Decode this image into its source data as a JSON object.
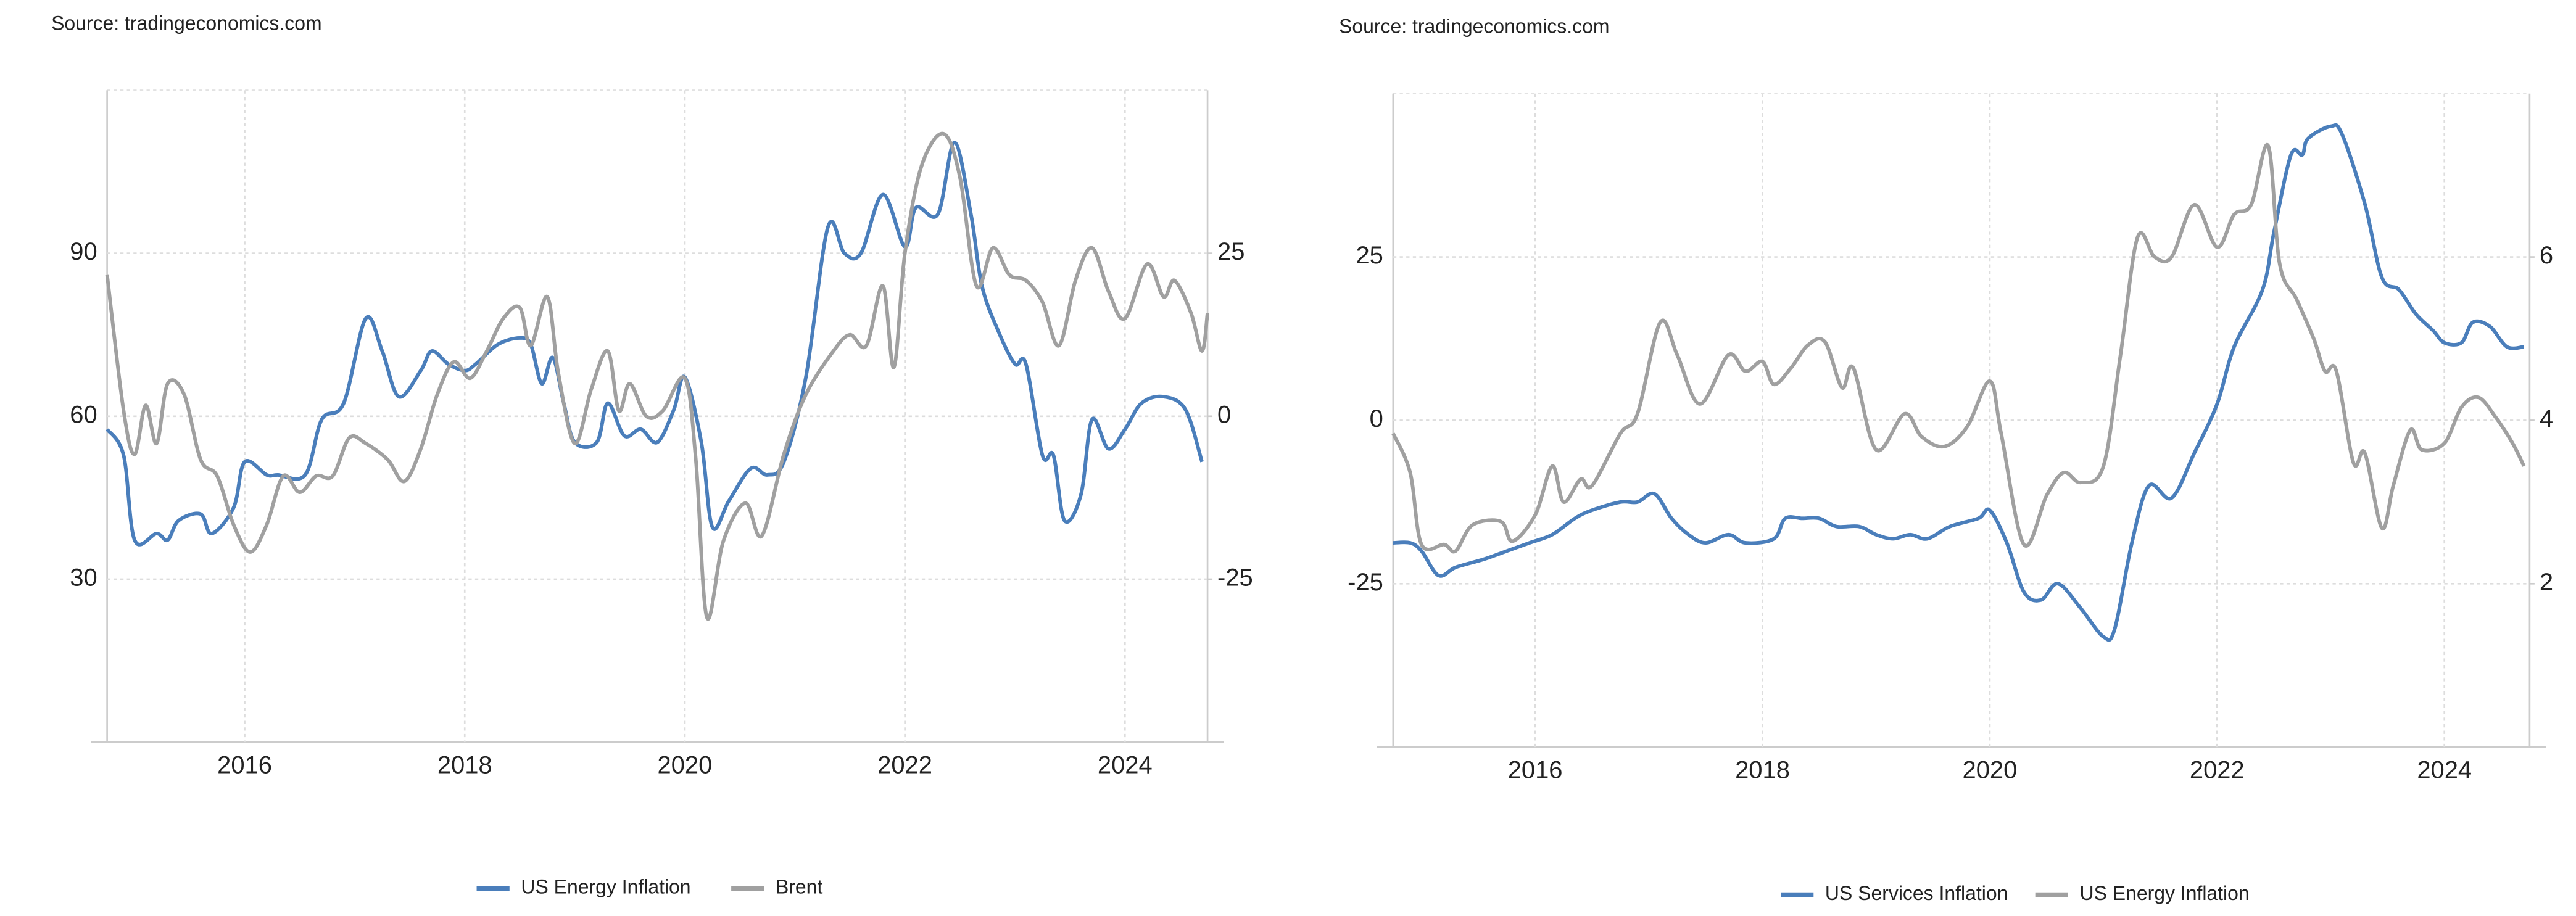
{
  "chart_data": {
    "charts": [
      {
        "type": "line",
        "source": "Source: tradingeconomics.com",
        "xlim": [
          2014.75,
          2024.75
        ],
        "xticks": [
          2016,
          2018,
          2020,
          2022,
          2024
        ],
        "ylim": [
          0,
          120
        ],
        "yticks": [
          30,
          60,
          90
        ],
        "y2lim": [
          -50,
          50
        ],
        "y2ticks": [
          -25,
          0,
          25
        ],
        "grid": true,
        "legend": "bottom",
        "series": [
          {
            "name": "US Energy Inflation",
            "color": "#4a7ebb",
            "axis": "y2",
            "x": [
              2014.75,
              2014.9,
              2015.0,
              2015.2,
              2015.3,
              2015.4,
              2015.6,
              2015.7,
              2015.9,
              2016.0,
              2016.2,
              2016.3,
              2016.55,
              2016.7,
              2016.9,
              2017.1,
              2017.25,
              2017.4,
              2017.6,
              2017.7,
              2017.85,
              2018.0,
              2018.1,
              2018.3,
              2018.5,
              2018.6,
              2018.7,
              2018.8,
              2018.9,
              2019.0,
              2019.2,
              2019.3,
              2019.45,
              2019.6,
              2019.75,
              2019.9,
              2020.0,
              2020.15,
              2020.25,
              2020.4,
              2020.6,
              2020.75,
              2020.9,
              2021.1,
              2021.3,
              2021.45,
              2021.6,
              2021.8,
              2022.0,
              2022.1,
              2022.3,
              2022.45,
              2022.6,
              2022.7,
              2022.85,
              2023.0,
              2023.1,
              2023.25,
              2023.35,
              2023.45,
              2023.6,
              2023.7,
              2023.85,
              2024.0,
              2024.15,
              2024.35,
              2024.55,
              2024.7
            ],
            "values": [
              -2,
              -6,
              -19,
              -18,
              -19,
              -16,
              -15,
              -18,
              -14,
              -7,
              -9,
              -9,
              -9,
              -0.5,
              2,
              15,
              10,
              3,
              7,
              10,
              8,
              7,
              8,
              11,
              12,
              11,
              5,
              9,
              2,
              -4,
              -4,
              2,
              -3,
              -2,
              -4,
              1,
              6,
              -4,
              -17,
              -13,
              -8,
              -9,
              -7,
              6,
              29,
              25,
              25,
              34,
              26,
              32,
              31,
              42,
              31,
              20,
              13,
              8,
              8,
              -6,
              -6,
              -16,
              -12,
              -0.5,
              -5,
              -2,
              2,
              3,
              1,
              -7
            ]
          },
          {
            "name": "Brent",
            "color": "#a0a0a0",
            "axis": "y",
            "x": [
              2014.75,
              2014.9,
              2015.0,
              2015.1,
              2015.2,
              2015.3,
              2015.45,
              2015.6,
              2015.75,
              2015.9,
              2016.05,
              2016.2,
              2016.35,
              2016.5,
              2016.65,
              2016.8,
              2016.95,
              2017.1,
              2017.3,
              2017.45,
              2017.6,
              2017.75,
              2017.9,
              2018.05,
              2018.2,
              2018.35,
              2018.5,
              2018.6,
              2018.75,
              2018.85,
              2019.0,
              2019.15,
              2019.3,
              2019.4,
              2019.5,
              2019.65,
              2019.8,
              2020.0,
              2020.1,
              2020.2,
              2020.35,
              2020.55,
              2020.7,
              2020.9,
              2021.1,
              2021.35,
              2021.5,
              2021.65,
              2021.8,
              2021.9,
              2022.0,
              2022.15,
              2022.35,
              2022.5,
              2022.65,
              2022.8,
              2022.95,
              2023.1,
              2023.25,
              2023.4,
              2023.55,
              2023.7,
              2023.85,
              2024.0,
              2024.2,
              2024.35,
              2024.45,
              2024.6,
              2024.7,
              2024.75
            ],
            "values": [
              86,
              61,
              53,
              62,
              55,
              66,
              64,
              52,
              49,
              40,
              35,
              40,
              49,
              46,
              49,
              49,
              56,
              55,
              52,
              48,
              54,
              64,
              70,
              67,
              72,
              78,
              80,
              73,
              82,
              68,
              55,
              65,
              72,
              61,
              66,
              60,
              61,
              67,
              52,
              23,
              37,
              44,
              38,
              53,
              64,
              72,
              75,
              73,
              84,
              69,
              90,
              106,
              112,
              104,
              84,
              91,
              86,
              85,
              81,
              73,
              85,
              91,
              83,
              78,
              88,
              82,
              85,
              79,
              72,
              79
            ]
          }
        ]
      },
      {
        "type": "line",
        "source": "Source: tradingeconomics.com",
        "xlim": [
          2014.75,
          2024.75
        ],
        "xticks": [
          2016,
          2018,
          2020,
          2022,
          2024
        ],
        "ylim": [
          -50,
          50
        ],
        "yticks": [
          -25,
          0,
          25
        ],
        "y2lim": [
          0,
          8
        ],
        "y2ticks": [
          2,
          4,
          6
        ],
        "grid": true,
        "legend": "bottom",
        "series": [
          {
            "name": "US Services Inflation",
            "color": "#4a7ebb",
            "axis": "y2",
            "x": [
              2014.75,
              2014.9,
              2015.0,
              2015.15,
              2015.3,
              2015.55,
              2015.75,
              2015.95,
              2016.15,
              2016.35,
              2016.5,
              2016.75,
              2016.9,
              2017.05,
              2017.2,
              2017.35,
              2017.5,
              2017.7,
              2017.85,
              2018.1,
              2018.2,
              2018.35,
              2018.5,
              2018.65,
              2018.85,
              2019.0,
              2019.15,
              2019.3,
              2019.45,
              2019.65,
              2019.9,
              2020.0,
              2020.15,
              2020.3,
              2020.45,
              2020.6,
              2020.8,
              2021.0,
              2021.1,
              2021.25,
              2021.4,
              2021.6,
              2021.8,
              2022.0,
              2022.15,
              2022.4,
              2022.5,
              2022.65,
              2022.75,
              2022.8,
              2023.0,
              2023.1,
              2023.3,
              2023.45,
              2023.6,
              2023.75,
              2023.9,
              2024.0,
              2024.15,
              2024.25,
              2024.4,
              2024.55,
              2024.7
            ],
            "values": [
              2.5,
              2.5,
              2.4,
              2.1,
              2.2,
              2.3,
              2.4,
              2.5,
              2.6,
              2.8,
              2.9,
              3.0,
              3.0,
              3.1,
              2.8,
              2.6,
              2.5,
              2.6,
              2.5,
              2.55,
              2.8,
              2.8,
              2.8,
              2.7,
              2.7,
              2.6,
              2.55,
              2.6,
              2.55,
              2.7,
              2.8,
              2.9,
              2.5,
              1.9,
              1.8,
              2.0,
              1.7,
              1.35,
              1.45,
              2.5,
              3.2,
              3.05,
              3.6,
              4.2,
              4.9,
              5.6,
              6.3,
              7.25,
              7.25,
              7.45,
              7.6,
              7.5,
              6.65,
              5.75,
              5.6,
              5.3,
              5.1,
              4.95,
              4.95,
              5.2,
              5.15,
              4.9,
              4.9
            ]
          },
          {
            "name": "US Energy Inflation",
            "color": "#a0a0a0",
            "axis": "y",
            "x": [
              2014.75,
              2014.9,
              2015.0,
              2015.2,
              2015.3,
              2015.45,
              2015.7,
              2015.8,
              2016.0,
              2016.15,
              2016.25,
              2016.4,
              2016.5,
              2016.75,
              2016.9,
              2017.1,
              2017.25,
              2017.45,
              2017.7,
              2017.85,
              2018.0,
              2018.1,
              2018.25,
              2018.4,
              2018.55,
              2018.7,
              2018.8,
              2019.0,
              2019.25,
              2019.4,
              2019.6,
              2019.8,
              2020.0,
              2020.1,
              2020.3,
              2020.5,
              2020.65,
              2020.8,
              2021.0,
              2021.15,
              2021.3,
              2021.45,
              2021.6,
              2021.8,
              2022.0,
              2022.15,
              2022.3,
              2022.45,
              2022.55,
              2022.7,
              2022.85,
              2022.95,
              2023.05,
              2023.2,
              2023.3,
              2023.45,
              2023.55,
              2023.7,
              2023.8,
              2024.0,
              2024.15,
              2024.3,
              2024.45,
              2024.6,
              2024.7
            ],
            "values": [
              -2,
              -8,
              -19,
              -19,
              -20,
              -16,
              -15.5,
              -18.5,
              -14.5,
              -7,
              -12.5,
              -9,
              -10,
              -2,
              1,
              15,
              10,
              2.5,
              10,
              7.5,
              9,
              5.5,
              8,
              11.5,
              12,
              5,
              8,
              -4.5,
              1,
              -2.5,
              -4,
              -1,
              6,
              -2,
              -19,
              -11.5,
              -8,
              -9.5,
              -7,
              10,
              28,
              25,
              25,
              33,
              26.5,
              31.5,
              33,
              42,
              24,
              18.5,
              12.5,
              7.5,
              7.5,
              -6.5,
              -5,
              -16.5,
              -10,
              -1.5,
              -4.5,
              -3.5,
              2,
              3.5,
              0.5,
              -3.5,
              -7
            ]
          }
        ]
      }
    ]
  }
}
